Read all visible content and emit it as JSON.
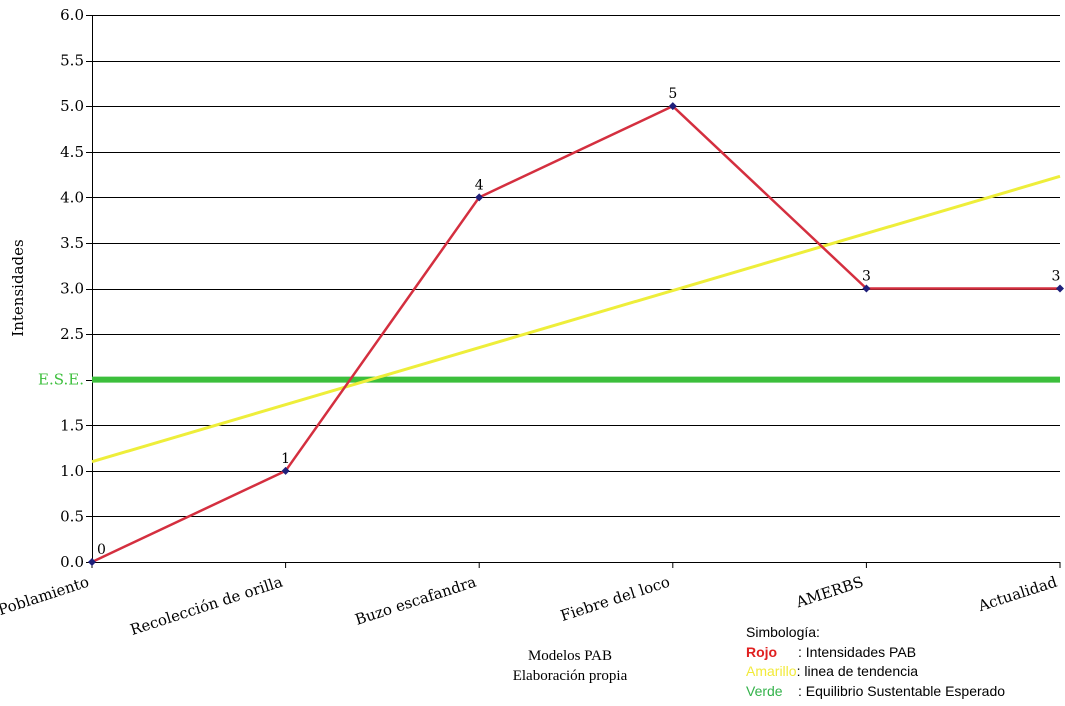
{
  "chart_data": {
    "type": "line",
    "categories": [
      "Poblamiento",
      "Recolección de orilla",
      "Buzo escafandra",
      "Fiebre del loco",
      "AMERBS",
      "Actualidad"
    ],
    "series": [
      {
        "values": [
          0,
          1,
          4,
          5,
          3,
          3
        ],
        "color": "#d42f3f"
      }
    ],
    "data_labels": [
      "0",
      "1",
      "4",
      "5",
      "3",
      "3"
    ],
    "trendline": {
      "start": 1.1,
      "end": 4.23,
      "color": "#eeee3a"
    },
    "reference_line": {
      "value": 2.0,
      "label": "E.S.E.",
      "color": "#3cbf3c"
    },
    "ylabel": "Intensidades",
    "ylim": [
      0,
      6
    ],
    "yticks": [
      "0.0",
      "0.5",
      "1.0",
      "1.5",
      "2.5",
      "3.0",
      "3.5",
      "4.0",
      "4.5",
      "5.0",
      "5.5",
      "6.0"
    ],
    "ytick_values": [
      0,
      0.5,
      1.0,
      1.5,
      2.5,
      3.0,
      3.5,
      4.0,
      4.5,
      5.0,
      5.5,
      6.0
    ],
    "grid": true,
    "marker_color": "#1f1f7a"
  },
  "xlabel_lines": [
    "Modelos PAB",
    "Elaboración propia"
  ],
  "legend": {
    "title": "Simbología:",
    "items": [
      {
        "key": "Rojo",
        "text": ": Intensidades PAB",
        "color": "#e02020",
        "bold": true
      },
      {
        "key": "Amarillo",
        "text": ": linea de tendencia",
        "color": "#f2ea3a",
        "bold": false
      },
      {
        "key": "Verde",
        "text": ": Equilibrio Sustentable Esperado",
        "color": "#33b24a",
        "bold": false
      }
    ]
  }
}
